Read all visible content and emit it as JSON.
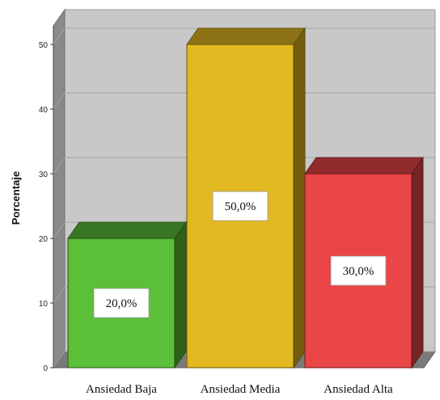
{
  "chart_data": {
    "type": "bar",
    "title": "",
    "xlabel": "",
    "ylabel": "Porcentaje",
    "ylim": [
      0,
      50
    ],
    "yticks": [
      0,
      10,
      20,
      30,
      40,
      50
    ],
    "grid": true,
    "style": "3d",
    "categories": [
      "Ansiedad Baja",
      "Ansiedad Media",
      "Ansiedad Alta"
    ],
    "values": [
      20.0,
      50.0,
      30.0
    ],
    "data_labels": [
      "20,0%",
      "50,0%",
      "30,0%"
    ],
    "colors": [
      "#5cbf38",
      "#e3b922",
      "#ea4647"
    ]
  }
}
